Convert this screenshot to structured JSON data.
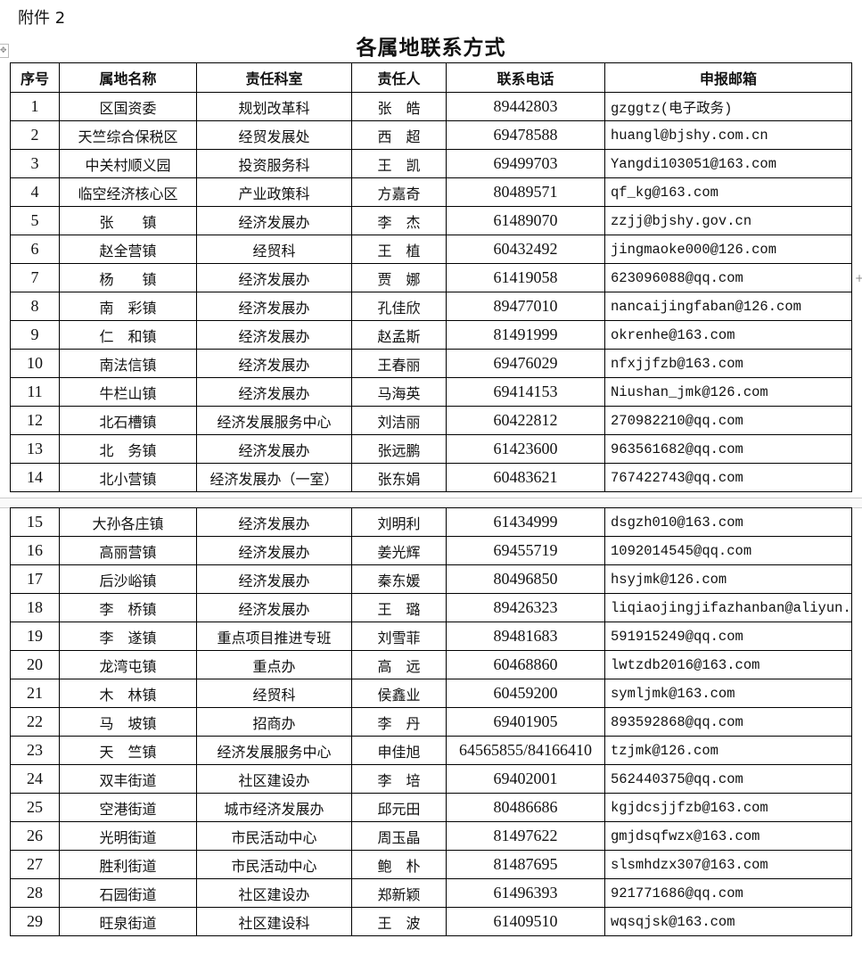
{
  "attachment_label": "附件 2",
  "title": "各属地联系方式",
  "columns": [
    "序号",
    "属地名称",
    "责任科室",
    "责任人",
    "联系电话",
    "申报邮箱"
  ],
  "rows": [
    [
      "1",
      "区国资委",
      "规划改革科",
      "张　皓",
      "89442803",
      "gzggtz(电子政务)"
    ],
    [
      "2",
      "天竺综合保税区",
      "经贸发展处",
      "西　超",
      "69478588",
      "huangl@bjshy.com.cn"
    ],
    [
      "3",
      "中关村顺义园",
      "投资服务科",
      "王　凯",
      "69499703",
      "Yangdi103051@163.com"
    ],
    [
      "4",
      "临空经济核心区",
      "产业政策科",
      "方嘉奇",
      "80489571",
      "qf_kg@163.com"
    ],
    [
      "5",
      "张　　镇",
      "经济发展办",
      "李　杰",
      "61489070",
      "zzjj@bjshy.gov.cn"
    ],
    [
      "6",
      "赵全营镇",
      "经贸科",
      "王　植",
      "60432492",
      "jingmaoke000@126.com"
    ],
    [
      "7",
      "杨　　镇",
      "经济发展办",
      "贾　娜",
      "61419058",
      "623096088@qq.com"
    ],
    [
      "8",
      "南　彩镇",
      "经济发展办",
      "孔佳欣",
      "89477010",
      "nancaijingfaban@126.com"
    ],
    [
      "9",
      "仁　和镇",
      "经济发展办",
      "赵孟斯",
      "81491999",
      "okrenhe@163.com"
    ],
    [
      "10",
      "南法信镇",
      "经济发展办",
      "王春丽",
      "69476029",
      "nfxjjfzb@163.com"
    ],
    [
      "11",
      "牛栏山镇",
      "经济发展办",
      "马海英",
      "69414153",
      "Niushan_jmk@126.com"
    ],
    [
      "12",
      "北石槽镇",
      "经济发展服务中心",
      "刘洁丽",
      "60422812",
      "270982210@qq.com"
    ],
    [
      "13",
      "北　务镇",
      "经济发展办",
      "张远鹏",
      "61423600",
      "963561682@qq.com"
    ],
    [
      "14",
      "北小营镇",
      "经济发展办（一室）",
      "张东娟",
      "60483621",
      "767422743@qq.com"
    ],
    [
      "15",
      "大孙各庄镇",
      "经济发展办",
      "刘明利",
      "61434999",
      "dsgzh010@163.com"
    ],
    [
      "16",
      "高丽营镇",
      "经济发展办",
      "姜光辉",
      "69455719",
      "1092014545@qq.com"
    ],
    [
      "17",
      "后沙峪镇",
      "经济发展办",
      "秦东媛",
      "80496850",
      "hsyjmk@126.com"
    ],
    [
      "18",
      "李　桥镇",
      "经济发展办",
      "王　璐",
      "89426323",
      "liqiaojingjifazhanban@aliyun.com"
    ],
    [
      "19",
      "李　遂镇",
      "重点项目推进专班",
      "刘雪菲",
      "89481683",
      "591915249@qq.com"
    ],
    [
      "20",
      "龙湾屯镇",
      "重点办",
      "高　远",
      "60468860",
      "lwtzdb2016@163.com"
    ],
    [
      "21",
      "木　林镇",
      "经贸科",
      "侯鑫业",
      "60459200",
      "symljmk@163.com"
    ],
    [
      "22",
      "马　坡镇",
      "招商办",
      "李　丹",
      "69401905",
      "893592868@qq.com"
    ],
    [
      "23",
      "天　竺镇",
      "经济发展服务中心",
      "申佳旭",
      "64565855/84166410",
      "tzjmk@126.com"
    ],
    [
      "24",
      "双丰街道",
      "社区建设办",
      "李　培",
      "69402001",
      "562440375@qq.com"
    ],
    [
      "25",
      "空港街道",
      "城市经济发展办",
      "邱元田",
      "80486686",
      "kgjdcsjjfzb@163.com"
    ],
    [
      "26",
      "光明街道",
      "市民活动中心",
      "周玉晶",
      "81497622",
      "gmjdsqfwzx@163.com"
    ],
    [
      "27",
      "胜利街道",
      "市民活动中心",
      "鲍　朴",
      "81487695",
      "slsmhdzx307@163.com"
    ],
    [
      "28",
      "石园街道",
      "社区建设办",
      "郑新颖",
      "61496393",
      "921771686@qq.com"
    ],
    [
      "29",
      "旺泉街道",
      "社区建设科",
      "王　波",
      "61409510",
      "wqsqjsk@163.com"
    ]
  ]
}
